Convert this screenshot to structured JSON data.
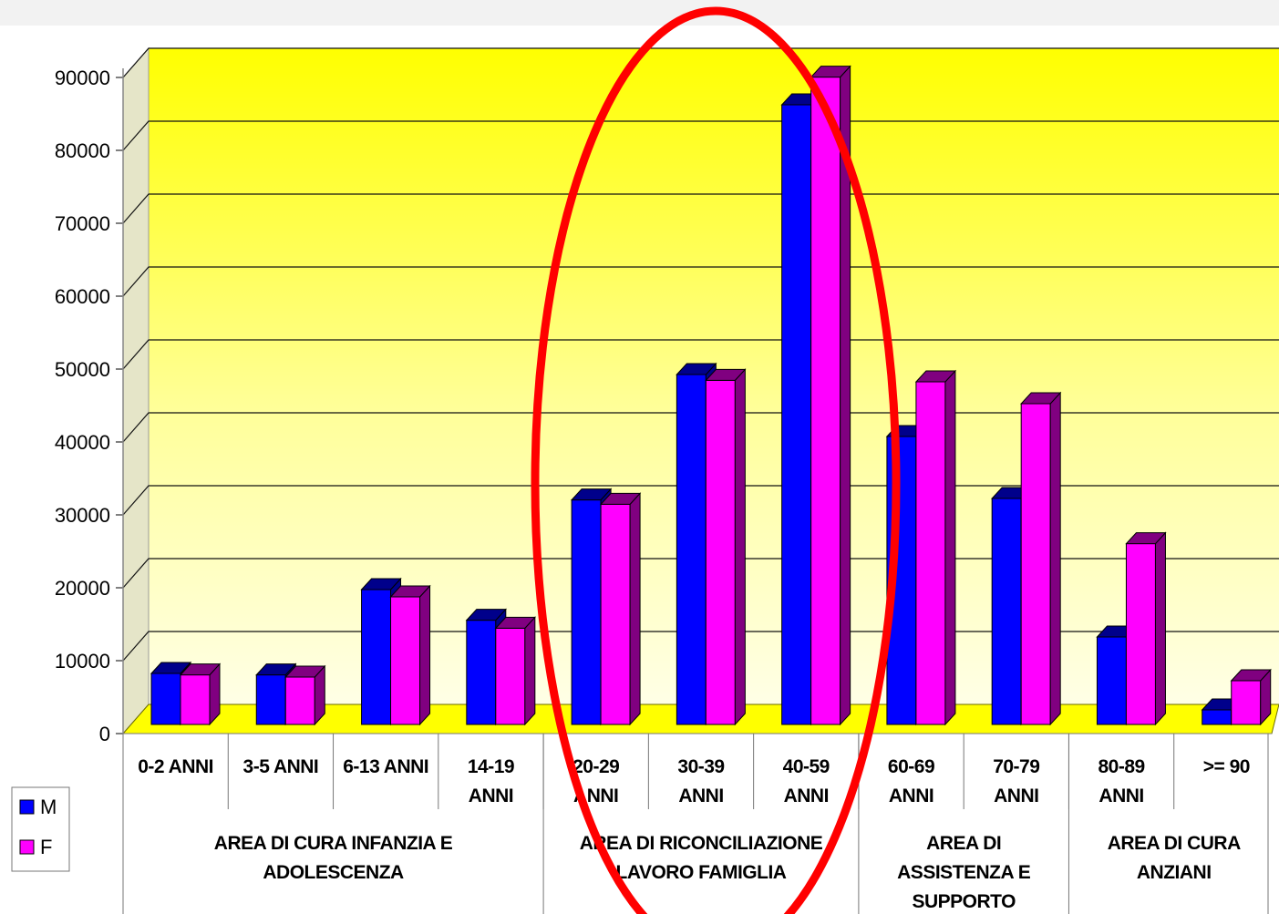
{
  "chart_data": {
    "type": "bar",
    "categories": [
      [
        "0-2 ANNI"
      ],
      [
        "3-5 ANNI"
      ],
      [
        "6-13 ANNI"
      ],
      [
        "14-19",
        "ANNI"
      ],
      [
        "20-29",
        "ANNI"
      ],
      [
        "30-39",
        "ANNI"
      ],
      [
        "40-59",
        "ANNI"
      ],
      [
        "60-69",
        "ANNI"
      ],
      [
        "70-79",
        "ANNI"
      ],
      [
        "80-89",
        "ANNI"
      ],
      [
        ">= 90"
      ]
    ],
    "groups": [
      {
        "label": [
          "AREA DI CURA INFANZIA E",
          "ADOLESCENZA"
        ],
        "span": 4
      },
      {
        "label": [
          "AREA DI RICONCILIAZIONE",
          "LAVORO FAMIGLIA"
        ],
        "span": 3
      },
      {
        "label": [
          "AREA DI",
          "ASSISTENZA E",
          "SUPPORTO"
        ],
        "span": 2
      },
      {
        "label": [
          "AREA DI CURA",
          "ANZIANI"
        ],
        "span": 2
      }
    ],
    "series": [
      {
        "name": "M",
        "color": "#0000ff",
        "side": "#00008b",
        "values": [
          7000,
          6800,
          18500,
          14300,
          30800,
          48000,
          85000,
          39500,
          31000,
          12000,
          2000
        ]
      },
      {
        "name": "F",
        "color": "#ff00ff",
        "side": "#800080",
        "values": [
          6800,
          6500,
          17500,
          13200,
          30200,
          47200,
          88800,
          47000,
          44000,
          24800,
          6000
        ]
      }
    ],
    "yticks": [
      "90000",
      "80000",
      "70000",
      "60000",
      "50000",
      "40000",
      "30000",
      "20000",
      "10000",
      "0"
    ],
    "ylim": [
      0,
      90000
    ],
    "xlabel": "",
    "ylabel": "",
    "title": "",
    "legend": "left",
    "wall_color": "#ffff00",
    "highlight_color": "#ff0000"
  }
}
